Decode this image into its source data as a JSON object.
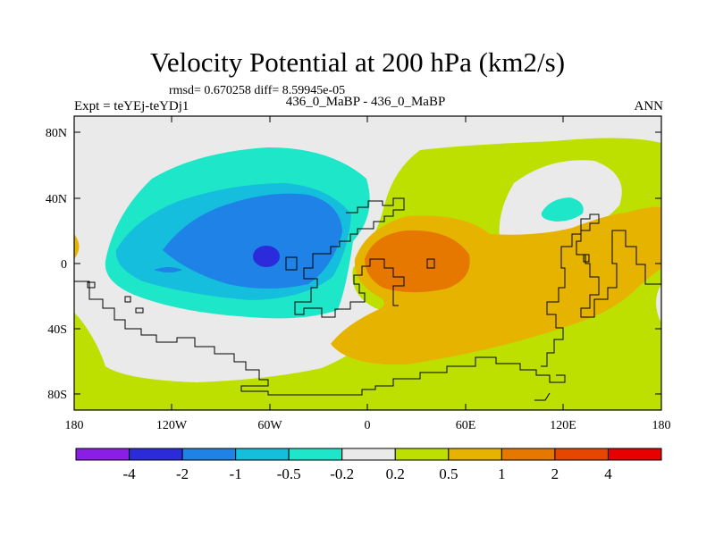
{
  "title": "Velocity Potential at 200 hPa (km2/s)",
  "stats": "rmsd= 0.670258 diff= 8.59945e-05",
  "expt_label": "Expt = teYEj-teYDj1",
  "center_label": "436_0_MaBP - 436_0_MaBP",
  "season_label": "ANN",
  "y_ticks": [
    "80N",
    "40N",
    "0",
    "40S",
    "80S"
  ],
  "x_ticks": [
    "180",
    "120W",
    "60W",
    "0",
    "60E",
    "120E",
    "180"
  ],
  "colorbar": {
    "colors": [
      "#8a1ee6",
      "#2b2bdc",
      "#1e82e6",
      "#14bedc",
      "#1ee6c8",
      "#eaeaea",
      "#bde000",
      "#e6b400",
      "#e67800",
      "#e64600",
      "#e60000"
    ],
    "labels": [
      "-4",
      "-2",
      "-1",
      "-0.5",
      "-0.2",
      "0.2",
      "0.5",
      "1",
      "2",
      "4"
    ]
  }
}
